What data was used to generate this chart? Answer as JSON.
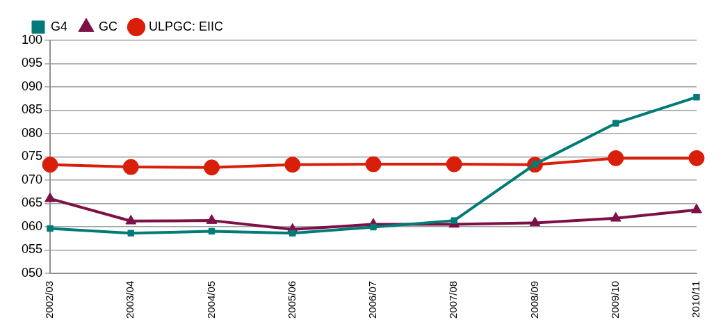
{
  "chart_data": {
    "type": "line",
    "categories": [
      "2002/03",
      "2003/04",
      "2004/05",
      "2005/06",
      "2006/07",
      "2007/08",
      "2008/09",
      "2009/10",
      "2010/11"
    ],
    "series": [
      {
        "name": "G4",
        "color": "#007b78",
        "marker": "square",
        "values": [
          59.6,
          58.6,
          59.0,
          58.6,
          59.9,
          61.3,
          73.4,
          82.2,
          87.8
        ]
      },
      {
        "name": "GC",
        "color": "#7b1146",
        "marker": "triangle",
        "values": [
          66.0,
          61.2,
          61.3,
          59.4,
          60.5,
          60.5,
          60.8,
          61.8,
          63.6
        ]
      },
      {
        "name": "ULPGC: EIIC",
        "color": "#d91e0a",
        "marker": "circle",
        "values": [
          73.3,
          72.8,
          72.7,
          73.3,
          73.4,
          73.4,
          73.3,
          74.7,
          74.7
        ]
      }
    ],
    "ylim": [
      50,
      100
    ],
    "yticks": [
      {
        "value": 50,
        "label": "050"
      },
      {
        "value": 55,
        "label": "055"
      },
      {
        "value": 60,
        "label": "060"
      },
      {
        "value": 65,
        "label": "065"
      },
      {
        "value": 70,
        "label": "070"
      },
      {
        "value": 75,
        "label": "075"
      },
      {
        "value": 80,
        "label": "080"
      },
      {
        "value": 85,
        "label": "085"
      },
      {
        "value": 90,
        "label": "090"
      },
      {
        "value": 95,
        "label": "095"
      },
      100
    ],
    "grid": "y",
    "legend": "top left",
    "line_style": "solid"
  }
}
